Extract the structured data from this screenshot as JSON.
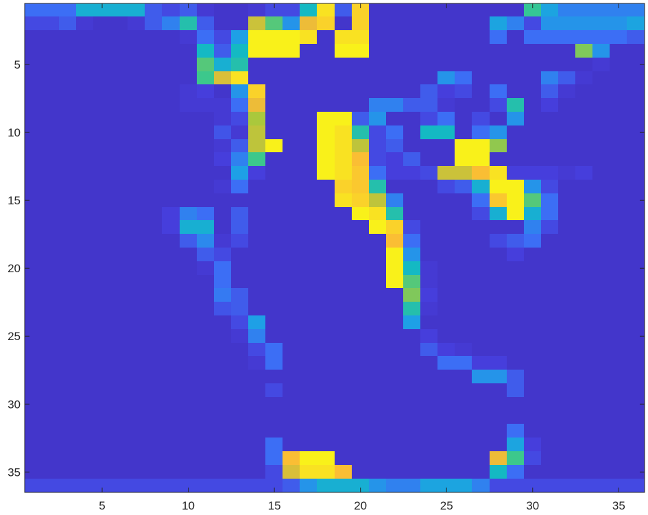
{
  "chart_data": {
    "type": "heatmap",
    "title": "",
    "xlabel": "",
    "ylabel": "",
    "xlim": [
      0.5,
      36.5
    ],
    "ylim": [
      0.5,
      36.5
    ],
    "y_direction": "reverse",
    "colormap": "parula",
    "colorbar": false,
    "grid": false,
    "clim": [
      0,
      1
    ],
    "x_ticks": [
      5,
      10,
      15,
      20,
      25,
      30,
      35
    ],
    "y_ticks": [
      5,
      10,
      15,
      20,
      25,
      30,
      35
    ],
    "x_tick_labels": [
      "5",
      "10",
      "15",
      "20",
      "25",
      "30",
      "35"
    ],
    "y_tick_labels": [
      "5",
      "10",
      "15",
      "20",
      "25",
      "30",
      "35"
    ],
    "values": [
      [
        0.25,
        0.25,
        0.25,
        0.45,
        0.45,
        0.45,
        0.45,
        0.2,
        0.15,
        0.2,
        0.1,
        0.08,
        0.08,
        0.1,
        0.15,
        0.15,
        0.5,
        0.95,
        0.2,
        0.92,
        0.08,
        0.08,
        0.08,
        0.08,
        0.08,
        0.08,
        0.08,
        0.08,
        0.08,
        0.6,
        0.4,
        0.3,
        0.3,
        0.3,
        0.3,
        0.3
      ],
      [
        0.15,
        0.15,
        0.2,
        0.1,
        0.08,
        0.08,
        0.1,
        0.2,
        0.3,
        0.55,
        0.2,
        0.08,
        0.08,
        0.8,
        0.65,
        0.35,
        0.85,
        0.92,
        0.08,
        0.92,
        0.08,
        0.08,
        0.08,
        0.08,
        0.08,
        0.08,
        0.08,
        0.4,
        0.3,
        0.15,
        0.35,
        0.35,
        0.35,
        0.35,
        0.35,
        0.4
      ],
      [
        0.08,
        0.08,
        0.08,
        0.08,
        0.08,
        0.08,
        0.08,
        0.08,
        0.08,
        0.1,
        0.25,
        0.15,
        0.38,
        0.98,
        0.98,
        0.98,
        0.95,
        0.08,
        0.95,
        0.95,
        0.08,
        0.08,
        0.08,
        0.08,
        0.08,
        0.08,
        0.08,
        0.25,
        0.08,
        0.25,
        0.25,
        0.25,
        0.25,
        0.25,
        0.25,
        0.2
      ],
      [
        0.08,
        0.08,
        0.08,
        0.08,
        0.08,
        0.08,
        0.08,
        0.08,
        0.08,
        0.08,
        0.5,
        0.2,
        0.5,
        0.98,
        0.98,
        0.98,
        0.08,
        0.08,
        0.98,
        0.98,
        0.08,
        0.08,
        0.08,
        0.08,
        0.08,
        0.08,
        0.08,
        0.08,
        0.08,
        0.08,
        0.08,
        0.08,
        0.7,
        0.35,
        0.08,
        0.08
      ],
      [
        0.08,
        0.08,
        0.08,
        0.08,
        0.08,
        0.08,
        0.08,
        0.08,
        0.08,
        0.08,
        0.65,
        0.45,
        0.55,
        0.08,
        0.08,
        0.08,
        0.08,
        0.08,
        0.08,
        0.08,
        0.08,
        0.08,
        0.08,
        0.08,
        0.08,
        0.08,
        0.08,
        0.08,
        0.08,
        0.08,
        0.08,
        0.08,
        0.08,
        0.1,
        0.08,
        0.08
      ],
      [
        0.08,
        0.08,
        0.08,
        0.08,
        0.08,
        0.08,
        0.08,
        0.08,
        0.08,
        0.08,
        0.62,
        0.82,
        0.95,
        0.08,
        0.08,
        0.08,
        0.08,
        0.08,
        0.08,
        0.08,
        0.08,
        0.08,
        0.08,
        0.08,
        0.35,
        0.25,
        0.08,
        0.08,
        0.08,
        0.08,
        0.3,
        0.2,
        0.1,
        0.08,
        0.08,
        0.08
      ],
      [
        0.08,
        0.08,
        0.08,
        0.08,
        0.08,
        0.08,
        0.08,
        0.08,
        0.08,
        0.1,
        0.12,
        0.08,
        0.35,
        0.92,
        0.08,
        0.08,
        0.08,
        0.08,
        0.08,
        0.08,
        0.08,
        0.08,
        0.08,
        0.2,
        0.12,
        0.15,
        0.08,
        0.25,
        0.08,
        0.08,
        0.2,
        0.1,
        0.08,
        0.08,
        0.08,
        0.08
      ],
      [
        0.08,
        0.08,
        0.08,
        0.08,
        0.08,
        0.08,
        0.08,
        0.08,
        0.08,
        0.1,
        0.1,
        0.1,
        0.25,
        0.85,
        0.08,
        0.08,
        0.08,
        0.08,
        0.08,
        0.08,
        0.3,
        0.3,
        0.2,
        0.2,
        0.1,
        0.08,
        0.08,
        0.15,
        0.55,
        0.08,
        0.12,
        0.08,
        0.08,
        0.08,
        0.08,
        0.08
      ],
      [
        0.08,
        0.08,
        0.08,
        0.08,
        0.08,
        0.08,
        0.08,
        0.08,
        0.08,
        0.08,
        0.08,
        0.1,
        0.15,
        0.75,
        0.08,
        0.08,
        0.08,
        0.98,
        0.98,
        0.2,
        0.35,
        0.08,
        0.08,
        0.15,
        0.25,
        0.08,
        0.15,
        0.08,
        0.35,
        0.08,
        0.08,
        0.08,
        0.08,
        0.08,
        0.08,
        0.08
      ],
      [
        0.08,
        0.08,
        0.08,
        0.08,
        0.08,
        0.08,
        0.08,
        0.08,
        0.08,
        0.08,
        0.08,
        0.18,
        0.1,
        0.78,
        0.08,
        0.08,
        0.08,
        0.98,
        0.95,
        0.55,
        0.15,
        0.25,
        0.08,
        0.5,
        0.5,
        0.08,
        0.25,
        0.35,
        0.08,
        0.08,
        0.08,
        0.08,
        0.08,
        0.08,
        0.08,
        0.08
      ],
      [
        0.08,
        0.08,
        0.08,
        0.08,
        0.08,
        0.08,
        0.08,
        0.08,
        0.08,
        0.08,
        0.08,
        0.1,
        0.2,
        0.78,
        0.98,
        0.08,
        0.08,
        0.98,
        0.95,
        0.78,
        0.15,
        0.2,
        0.08,
        0.08,
        0.08,
        0.98,
        0.98,
        0.72,
        0.08,
        0.08,
        0.08,
        0.08,
        0.08,
        0.08,
        0.08,
        0.08
      ],
      [
        0.08,
        0.08,
        0.08,
        0.08,
        0.08,
        0.08,
        0.08,
        0.08,
        0.08,
        0.08,
        0.08,
        0.12,
        0.3,
        0.62,
        0.08,
        0.08,
        0.08,
        0.98,
        0.95,
        0.88,
        0.15,
        0.12,
        0.2,
        0.08,
        0.08,
        0.98,
        0.98,
        0.08,
        0.08,
        0.08,
        0.08,
        0.08,
        0.08,
        0.08,
        0.08,
        0.08
      ],
      [
        0.08,
        0.08,
        0.08,
        0.08,
        0.08,
        0.08,
        0.08,
        0.08,
        0.08,
        0.08,
        0.08,
        0.08,
        0.38,
        0.12,
        0.08,
        0.08,
        0.08,
        0.98,
        0.95,
        0.9,
        0.25,
        0.12,
        0.12,
        0.15,
        0.8,
        0.8,
        0.88,
        0.95,
        0.12,
        0.12,
        0.12,
        0.1,
        0.12,
        0.08,
        0.08,
        0.08
      ],
      [
        0.08,
        0.08,
        0.08,
        0.08,
        0.08,
        0.08,
        0.08,
        0.08,
        0.08,
        0.08,
        0.08,
        0.1,
        0.25,
        0.08,
        0.08,
        0.08,
        0.08,
        0.08,
        0.92,
        0.9,
        0.55,
        0.08,
        0.08,
        0.08,
        0.15,
        0.2,
        0.45,
        0.98,
        0.98,
        0.35,
        0.15,
        0.08,
        0.08,
        0.08,
        0.08,
        0.08
      ],
      [
        0.08,
        0.08,
        0.08,
        0.08,
        0.08,
        0.08,
        0.08,
        0.08,
        0.08,
        0.08,
        0.08,
        0.08,
        0.08,
        0.08,
        0.08,
        0.08,
        0.08,
        0.08,
        0.95,
        0.92,
        0.78,
        0.3,
        0.08,
        0.08,
        0.08,
        0.08,
        0.25,
        0.9,
        0.98,
        0.65,
        0.25,
        0.08,
        0.08,
        0.08,
        0.08,
        0.08
      ],
      [
        0.08,
        0.08,
        0.08,
        0.08,
        0.08,
        0.08,
        0.08,
        0.08,
        0.12,
        0.3,
        0.25,
        0.08,
        0.2,
        0.08,
        0.08,
        0.08,
        0.08,
        0.08,
        0.08,
        0.98,
        0.95,
        0.55,
        0.08,
        0.08,
        0.08,
        0.08,
        0.15,
        0.45,
        0.98,
        0.45,
        0.25,
        0.08,
        0.08,
        0.08,
        0.08,
        0.08
      ],
      [
        0.08,
        0.08,
        0.08,
        0.08,
        0.08,
        0.08,
        0.08,
        0.08,
        0.12,
        0.45,
        0.45,
        0.08,
        0.2,
        0.08,
        0.08,
        0.08,
        0.08,
        0.08,
        0.08,
        0.08,
        0.98,
        0.92,
        0.15,
        0.08,
        0.08,
        0.08,
        0.08,
        0.08,
        0.08,
        0.3,
        0.15,
        0.08,
        0.08,
        0.08,
        0.08,
        0.08
      ],
      [
        0.08,
        0.08,
        0.08,
        0.08,
        0.08,
        0.08,
        0.08,
        0.08,
        0.08,
        0.2,
        0.32,
        0.1,
        0.15,
        0.08,
        0.08,
        0.08,
        0.08,
        0.08,
        0.08,
        0.08,
        0.08,
        0.88,
        0.25,
        0.08,
        0.08,
        0.08,
        0.08,
        0.15,
        0.2,
        0.25,
        0.08,
        0.08,
        0.08,
        0.08,
        0.08,
        0.08
      ],
      [
        0.08,
        0.08,
        0.08,
        0.08,
        0.08,
        0.08,
        0.08,
        0.08,
        0.08,
        0.08,
        0.2,
        0.15,
        0.08,
        0.08,
        0.08,
        0.08,
        0.08,
        0.08,
        0.08,
        0.08,
        0.08,
        0.98,
        0.35,
        0.08,
        0.08,
        0.08,
        0.08,
        0.08,
        0.12,
        0.08,
        0.08,
        0.08,
        0.08,
        0.08,
        0.08,
        0.08
      ],
      [
        0.08,
        0.08,
        0.08,
        0.08,
        0.08,
        0.08,
        0.08,
        0.08,
        0.08,
        0.08,
        0.1,
        0.25,
        0.08,
        0.08,
        0.08,
        0.08,
        0.08,
        0.08,
        0.08,
        0.08,
        0.08,
        0.98,
        0.5,
        0.1,
        0.08,
        0.08,
        0.08,
        0.08,
        0.08,
        0.08,
        0.08,
        0.08,
        0.08,
        0.08,
        0.08,
        0.08
      ],
      [
        0.08,
        0.08,
        0.08,
        0.08,
        0.08,
        0.08,
        0.08,
        0.08,
        0.08,
        0.08,
        0.08,
        0.25,
        0.08,
        0.08,
        0.08,
        0.08,
        0.08,
        0.08,
        0.08,
        0.08,
        0.08,
        0.98,
        0.65,
        0.1,
        0.08,
        0.08,
        0.08,
        0.08,
        0.08,
        0.08,
        0.08,
        0.08,
        0.08,
        0.08,
        0.08,
        0.08
      ],
      [
        0.08,
        0.08,
        0.08,
        0.08,
        0.08,
        0.08,
        0.08,
        0.08,
        0.08,
        0.08,
        0.08,
        0.28,
        0.2,
        0.08,
        0.08,
        0.08,
        0.08,
        0.08,
        0.08,
        0.08,
        0.08,
        0.08,
        0.7,
        0.12,
        0.08,
        0.08,
        0.08,
        0.08,
        0.08,
        0.08,
        0.08,
        0.08,
        0.08,
        0.08,
        0.08,
        0.08
      ],
      [
        0.08,
        0.08,
        0.08,
        0.08,
        0.08,
        0.08,
        0.08,
        0.08,
        0.08,
        0.08,
        0.08,
        0.18,
        0.2,
        0.08,
        0.08,
        0.08,
        0.08,
        0.08,
        0.08,
        0.08,
        0.08,
        0.08,
        0.55,
        0.1,
        0.08,
        0.08,
        0.08,
        0.08,
        0.08,
        0.08,
        0.08,
        0.08,
        0.08,
        0.08,
        0.08,
        0.08
      ],
      [
        0.08,
        0.08,
        0.08,
        0.08,
        0.08,
        0.08,
        0.08,
        0.08,
        0.08,
        0.08,
        0.08,
        0.08,
        0.15,
        0.38,
        0.08,
        0.08,
        0.08,
        0.08,
        0.08,
        0.08,
        0.08,
        0.08,
        0.38,
        0.08,
        0.08,
        0.08,
        0.08,
        0.08,
        0.08,
        0.08,
        0.08,
        0.08,
        0.08,
        0.08,
        0.08,
        0.08
      ],
      [
        0.08,
        0.08,
        0.08,
        0.08,
        0.08,
        0.08,
        0.08,
        0.08,
        0.08,
        0.08,
        0.08,
        0.08,
        0.1,
        0.3,
        0.08,
        0.08,
        0.08,
        0.08,
        0.08,
        0.08,
        0.08,
        0.08,
        0.08,
        0.12,
        0.08,
        0.08,
        0.08,
        0.08,
        0.08,
        0.08,
        0.08,
        0.08,
        0.08,
        0.08,
        0.08,
        0.08
      ],
      [
        0.08,
        0.08,
        0.08,
        0.08,
        0.08,
        0.08,
        0.08,
        0.08,
        0.08,
        0.08,
        0.08,
        0.08,
        0.08,
        0.15,
        0.25,
        0.08,
        0.08,
        0.08,
        0.08,
        0.08,
        0.08,
        0.08,
        0.08,
        0.2,
        0.12,
        0.1,
        0.08,
        0.08,
        0.08,
        0.08,
        0.08,
        0.08,
        0.08,
        0.08,
        0.08,
        0.08
      ],
      [
        0.08,
        0.08,
        0.08,
        0.08,
        0.08,
        0.08,
        0.08,
        0.08,
        0.08,
        0.08,
        0.08,
        0.08,
        0.08,
        0.1,
        0.25,
        0.08,
        0.08,
        0.08,
        0.08,
        0.08,
        0.08,
        0.08,
        0.08,
        0.08,
        0.25,
        0.25,
        0.12,
        0.12,
        0.08,
        0.08,
        0.08,
        0.08,
        0.08,
        0.08,
        0.08,
        0.08
      ],
      [
        0.08,
        0.08,
        0.08,
        0.08,
        0.08,
        0.08,
        0.08,
        0.08,
        0.08,
        0.08,
        0.08,
        0.08,
        0.08,
        0.08,
        0.08,
        0.08,
        0.08,
        0.08,
        0.08,
        0.08,
        0.08,
        0.08,
        0.08,
        0.08,
        0.08,
        0.08,
        0.35,
        0.35,
        0.2,
        0.08,
        0.08,
        0.08,
        0.08,
        0.08,
        0.08,
        0.08
      ],
      [
        0.08,
        0.08,
        0.08,
        0.08,
        0.08,
        0.08,
        0.08,
        0.08,
        0.08,
        0.08,
        0.08,
        0.08,
        0.08,
        0.08,
        0.15,
        0.08,
        0.08,
        0.08,
        0.08,
        0.08,
        0.08,
        0.08,
        0.08,
        0.08,
        0.08,
        0.08,
        0.08,
        0.08,
        0.2,
        0.08,
        0.08,
        0.08,
        0.08,
        0.08,
        0.08,
        0.08
      ],
      [
        0.08,
        0.08,
        0.08,
        0.08,
        0.08,
        0.08,
        0.08,
        0.08,
        0.08,
        0.08,
        0.08,
        0.08,
        0.08,
        0.08,
        0.08,
        0.08,
        0.08,
        0.08,
        0.08,
        0.08,
        0.08,
        0.08,
        0.08,
        0.08,
        0.08,
        0.08,
        0.08,
        0.08,
        0.08,
        0.08,
        0.08,
        0.08,
        0.08,
        0.08,
        0.08,
        0.08
      ],
      [
        0.08,
        0.08,
        0.08,
        0.08,
        0.08,
        0.08,
        0.08,
        0.08,
        0.08,
        0.08,
        0.08,
        0.08,
        0.08,
        0.08,
        0.08,
        0.08,
        0.08,
        0.08,
        0.08,
        0.08,
        0.08,
        0.08,
        0.08,
        0.08,
        0.08,
        0.08,
        0.08,
        0.08,
        0.08,
        0.08,
        0.08,
        0.08,
        0.08,
        0.08,
        0.08,
        0.08
      ],
      [
        0.08,
        0.08,
        0.08,
        0.08,
        0.08,
        0.08,
        0.08,
        0.08,
        0.08,
        0.08,
        0.08,
        0.08,
        0.08,
        0.08,
        0.08,
        0.08,
        0.08,
        0.08,
        0.08,
        0.08,
        0.08,
        0.08,
        0.08,
        0.08,
        0.08,
        0.08,
        0.08,
        0.08,
        0.25,
        0.08,
        0.08,
        0.08,
        0.08,
        0.08,
        0.08,
        0.08
      ],
      [
        0.08,
        0.08,
        0.08,
        0.08,
        0.08,
        0.08,
        0.08,
        0.08,
        0.08,
        0.08,
        0.08,
        0.08,
        0.08,
        0.08,
        0.25,
        0.08,
        0.08,
        0.08,
        0.08,
        0.08,
        0.08,
        0.08,
        0.08,
        0.08,
        0.08,
        0.08,
        0.08,
        0.08,
        0.4,
        0.12,
        0.08,
        0.08,
        0.08,
        0.08,
        0.08,
        0.08
      ],
      [
        0.08,
        0.08,
        0.08,
        0.08,
        0.08,
        0.08,
        0.08,
        0.08,
        0.08,
        0.08,
        0.08,
        0.08,
        0.08,
        0.08,
        0.25,
        0.88,
        0.98,
        0.98,
        0.08,
        0.08,
        0.08,
        0.08,
        0.08,
        0.08,
        0.08,
        0.08,
        0.08,
        0.85,
        0.62,
        0.15,
        0.08,
        0.08,
        0.08,
        0.08,
        0.08,
        0.08
      ],
      [
        0.08,
        0.08,
        0.08,
        0.08,
        0.08,
        0.08,
        0.08,
        0.08,
        0.08,
        0.08,
        0.08,
        0.08,
        0.08,
        0.08,
        0.15,
        0.82,
        0.95,
        0.95,
        0.88,
        0.08,
        0.08,
        0.08,
        0.08,
        0.08,
        0.08,
        0.08,
        0.08,
        0.5,
        0.25,
        0.08,
        0.08,
        0.08,
        0.08,
        0.08,
        0.08,
        0.08
      ],
      [
        0.15,
        0.15,
        0.15,
        0.15,
        0.15,
        0.15,
        0.15,
        0.15,
        0.15,
        0.15,
        0.15,
        0.15,
        0.15,
        0.15,
        0.15,
        0.2,
        0.35,
        0.45,
        0.45,
        0.45,
        0.35,
        0.3,
        0.3,
        0.4,
        0.4,
        0.4,
        0.3,
        0.15,
        0.15,
        0.15,
        0.15,
        0.15,
        0.15,
        0.15,
        0.15,
        0.15
      ]
    ]
  }
}
